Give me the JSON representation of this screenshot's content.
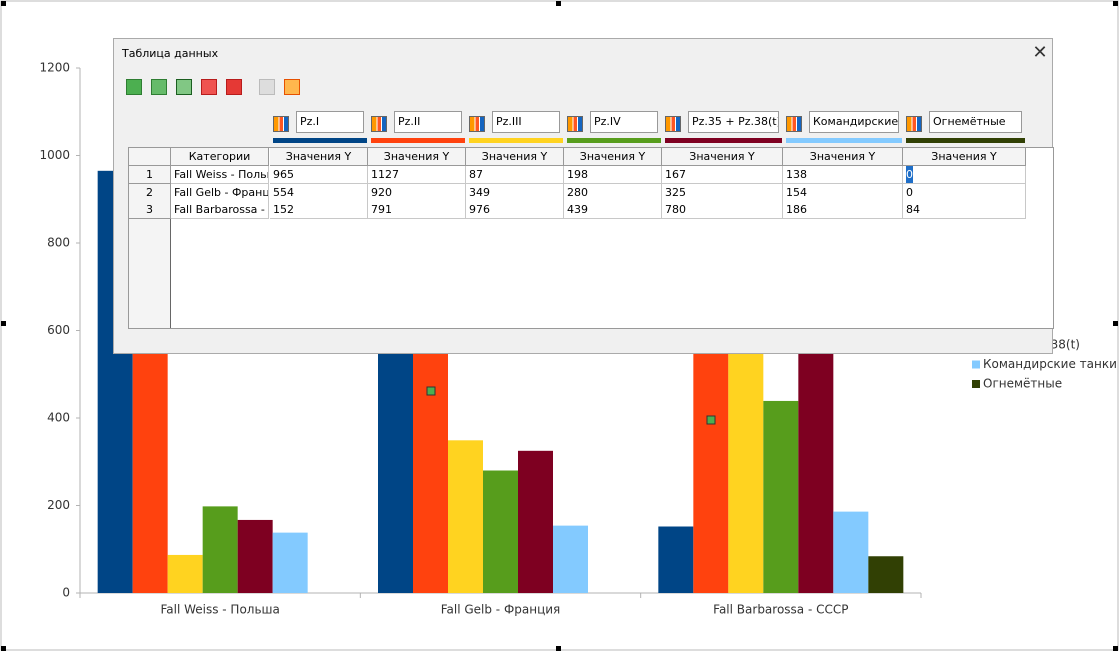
{
  "chart_data": {
    "type": "bar",
    "categories": [
      "Fall Weiss - Польша",
      "Fall Gelb - Франция",
      "Fall Barbarossa - СССР"
    ],
    "series": [
      {
        "name": "Pz.I",
        "color": "#004586",
        "values": [
          965,
          554,
          152
        ]
      },
      {
        "name": "Pz.II",
        "color": "#ff420e",
        "values": [
          1127,
          920,
          791
        ]
      },
      {
        "name": "Pz.III",
        "color": "#ffd320",
        "values": [
          87,
          349,
          976
        ]
      },
      {
        "name": "Pz.IV",
        "color": "#579d1c",
        "values": [
          198,
          280,
          439
        ]
      },
      {
        "name": "Pz.35 + Pz.38(t)",
        "color": "#7e0021",
        "values": [
          167,
          325,
          780
        ]
      },
      {
        "name": "Командирские танки",
        "color": "#83caff",
        "values": [
          138,
          154,
          186
        ]
      },
      {
        "name": "Огнемётные",
        "color": "#314004",
        "values": [
          0,
          0,
          84
        ]
      }
    ],
    "ylim": [
      0,
      1200
    ],
    "yticks": [
      0,
      200,
      400,
      600,
      800,
      1000,
      1200
    ],
    "grid": false
  },
  "dialog": {
    "title": "Таблица данных",
    "category_header": "Категории",
    "value_header": "Значения Y",
    "row_numbers": [
      "1",
      "2",
      "3"
    ]
  }
}
